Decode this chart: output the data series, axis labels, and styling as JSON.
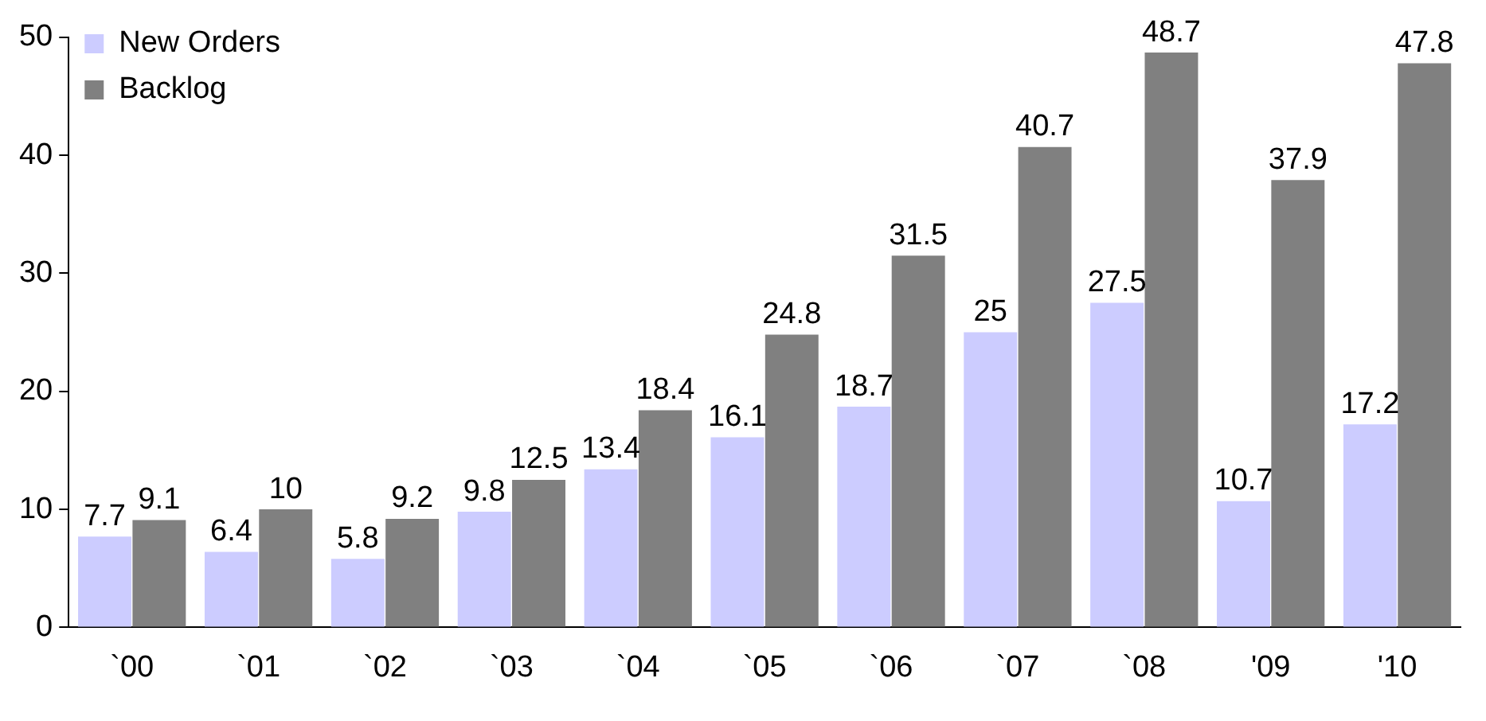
{
  "chart_data": {
    "type": "bar",
    "categories": [
      "`00",
      "`01",
      "`02",
      "`03",
      "`04",
      "`05",
      "`06",
      "`07",
      "`08",
      "'09",
      "'10"
    ],
    "series": [
      {
        "name": "New Orders",
        "color": "#ccccff",
        "values": [
          7.7,
          6.4,
          5.8,
          9.8,
          13.4,
          16.1,
          18.7,
          25,
          27.5,
          10.7,
          17.2
        ]
      },
      {
        "name": "Backlog",
        "color": "#808080",
        "values": [
          9.1,
          10,
          9.2,
          12.5,
          18.4,
          24.8,
          31.5,
          40.7,
          48.7,
          37.9,
          47.8
        ]
      }
    ],
    "ylim": [
      0,
      50
    ],
    "yticks": [
      0,
      10,
      20,
      30,
      40,
      50
    ],
    "grid": false,
    "legend": "top left",
    "data_labels": true
  }
}
